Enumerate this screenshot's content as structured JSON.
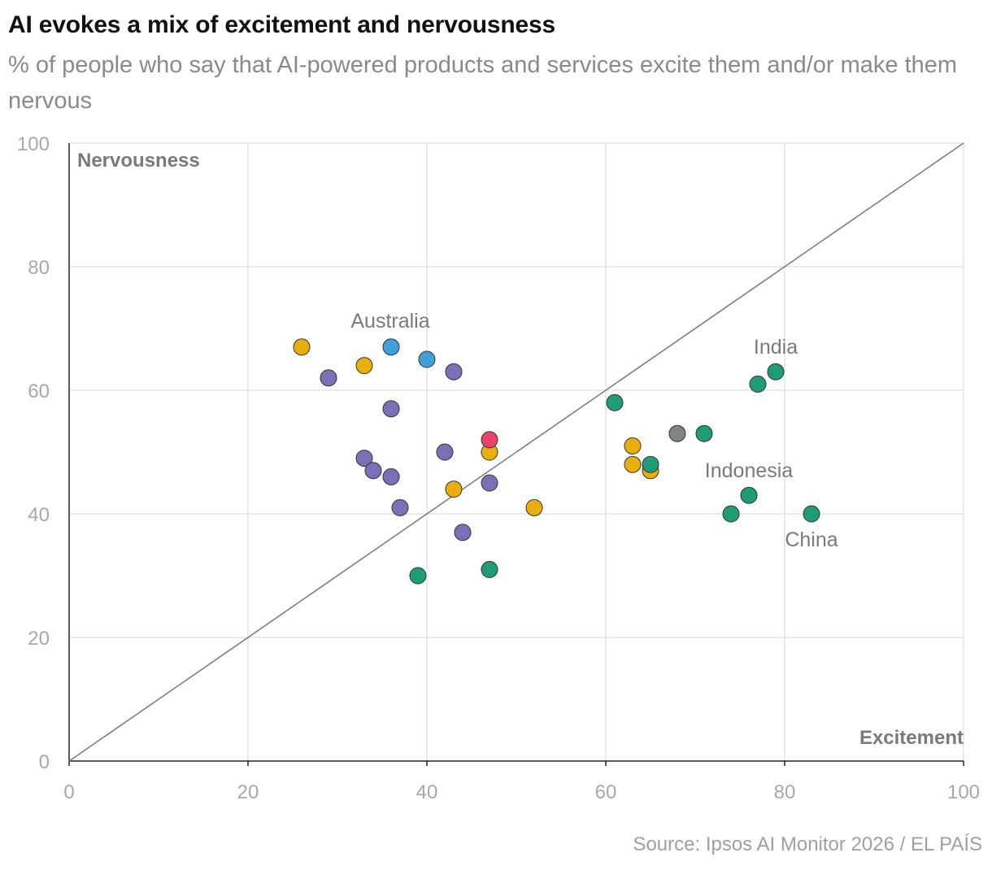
{
  "header": {
    "title": "AI evokes a mix of excitement and nervousness",
    "subtitle": "% of people who say that AI-powered products and services excite them and/or make them nervous"
  },
  "footer": {
    "source": "Source: Ipsos AI Monitor 2026 / EL PAÍS"
  },
  "chart_data": {
    "type": "scatter",
    "title": "AI evokes a mix of excitement and nervousness",
    "subtitle": "% of people who say that AI-powered products and services excite them and/or make them nervous",
    "xlabel": "Excitement",
    "ylabel": "Nervousness",
    "xlim": [
      0,
      100
    ],
    "ylim": [
      0,
      100
    ],
    "x_ticks": [
      "0",
      "20",
      "40",
      "60",
      "80",
      "100"
    ],
    "y_ticks": [
      "0",
      "20",
      "40",
      "60",
      "80",
      "100"
    ],
    "grid": true,
    "reference_line": {
      "from": [
        0,
        0
      ],
      "to": [
        100,
        100
      ],
      "color": "#7f7f7f"
    },
    "colors": {
      "yellow": "#E8AE0C",
      "purple": "#7B70B8",
      "blue": "#3FA0DA",
      "green": "#1E9C78",
      "pink": "#E8426D",
      "gray": "#7F8580"
    },
    "points": [
      {
        "x": 26,
        "y": 67,
        "color": "#E8AE0C"
      },
      {
        "x": 29,
        "y": 62,
        "color": "#7B70B8"
      },
      {
        "x": 33,
        "y": 64,
        "color": "#E8AE0C"
      },
      {
        "x": 36,
        "y": 67,
        "color": "#3FA0DA",
        "label": "Australia"
      },
      {
        "x": 40,
        "y": 65,
        "color": "#3FA0DA"
      },
      {
        "x": 43,
        "y": 63,
        "color": "#7B70B8"
      },
      {
        "x": 36,
        "y": 57,
        "color": "#7B70B8"
      },
      {
        "x": 33,
        "y": 49,
        "color": "#7B70B8"
      },
      {
        "x": 34,
        "y": 47,
        "color": "#7B70B8"
      },
      {
        "x": 36,
        "y": 46,
        "color": "#7B70B8"
      },
      {
        "x": 37,
        "y": 41,
        "color": "#7B70B8"
      },
      {
        "x": 42,
        "y": 50,
        "color": "#7B70B8"
      },
      {
        "x": 47,
        "y": 50,
        "color": "#E8AE0C"
      },
      {
        "x": 47,
        "y": 52,
        "color": "#E8426D"
      },
      {
        "x": 43,
        "y": 44,
        "color": "#E8AE0C"
      },
      {
        "x": 47,
        "y": 45,
        "color": "#7B70B8"
      },
      {
        "x": 44,
        "y": 37,
        "color": "#7B70B8"
      },
      {
        "x": 52,
        "y": 41,
        "color": "#E8AE0C"
      },
      {
        "x": 39,
        "y": 30,
        "color": "#1E9C78"
      },
      {
        "x": 47,
        "y": 31,
        "color": "#1E9C78"
      },
      {
        "x": 61,
        "y": 58,
        "color": "#1E9C78"
      },
      {
        "x": 63,
        "y": 51,
        "color": "#E8AE0C"
      },
      {
        "x": 63,
        "y": 48,
        "color": "#E8AE0C"
      },
      {
        "x": 65,
        "y": 47,
        "color": "#E8AE0C"
      },
      {
        "x": 65,
        "y": 48,
        "color": "#1E9C78"
      },
      {
        "x": 68,
        "y": 53,
        "color": "#7F8580"
      },
      {
        "x": 71,
        "y": 53,
        "color": "#1E9C78"
      },
      {
        "x": 77,
        "y": 61,
        "color": "#1E9C78"
      },
      {
        "x": 79,
        "y": 63,
        "color": "#1E9C78",
        "label": "India"
      },
      {
        "x": 76,
        "y": 43,
        "color": "#1E9C78",
        "label": "Indonesia"
      },
      {
        "x": 74,
        "y": 40,
        "color": "#1E9C78"
      },
      {
        "x": 83,
        "y": 40,
        "color": "#1E9C78",
        "label": "China"
      }
    ]
  }
}
